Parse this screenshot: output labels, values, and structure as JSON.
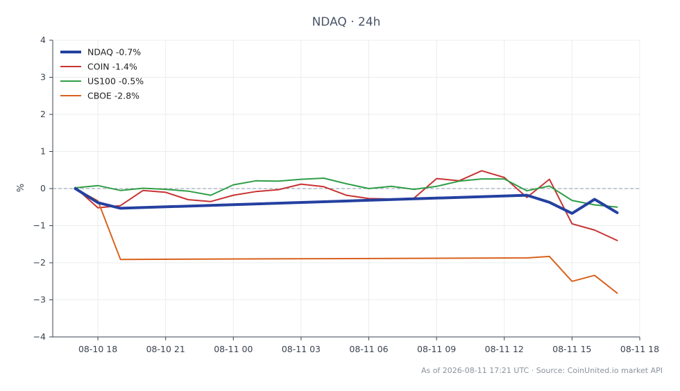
{
  "chart_data": {
    "type": "line",
    "title": "NDAQ · 24h",
    "xlabel": "",
    "ylabel": "%",
    "footer": "As of 2026-08-11 17:21 UTC · Source: CoinUnited.io market API",
    "ylim": [
      -4,
      4
    ],
    "yticks": [
      -4,
      -3,
      -2,
      -1,
      0,
      1,
      2,
      3,
      4
    ],
    "ytick_labels": [
      "−4",
      "−3",
      "−2",
      "−1",
      "0",
      "1",
      "2",
      "3",
      "4"
    ],
    "xlim_hours": [
      16.0,
      42.0
    ],
    "xticks": [
      {
        "hour": 18,
        "label": "08-10 18"
      },
      {
        "hour": 21,
        "label": "08-10 21"
      },
      {
        "hour": 24,
        "label": "08-11 00"
      },
      {
        "hour": 27,
        "label": "08-11 03"
      },
      {
        "hour": 30,
        "label": "08-11 06"
      },
      {
        "hour": 33,
        "label": "08-11 09"
      },
      {
        "hour": 36,
        "label": "08-11 12"
      },
      {
        "hour": 39,
        "label": "08-11 15"
      },
      {
        "hour": 42,
        "label": "08-11 18"
      }
    ],
    "grid": true,
    "zero_line": true,
    "legend_position": "top-left",
    "series": [
      {
        "name": "NDAQ -0.7%",
        "color": "#2440a0",
        "width": 4,
        "x": [
          17,
          18,
          19,
          37,
          38,
          39,
          40,
          41
        ],
        "y": [
          0.0,
          -0.38,
          -0.53,
          -0.18,
          -0.37,
          -0.67,
          -0.29,
          -0.65
        ]
      },
      {
        "name": "COIN -1.4%",
        "color": "#c83232",
        "width": 2,
        "x": [
          17,
          18,
          19,
          20,
          21,
          22,
          23,
          24,
          25,
          26,
          27,
          28,
          29,
          30,
          31,
          32,
          33,
          34,
          35,
          36,
          37,
          38,
          39,
          40,
          41
        ],
        "y": [
          0.03,
          -0.52,
          -0.46,
          -0.05,
          -0.1,
          -0.3,
          -0.35,
          -0.18,
          -0.08,
          -0.03,
          0.12,
          0.05,
          -0.18,
          -0.27,
          -0.28,
          -0.26,
          0.27,
          0.21,
          0.48,
          0.3,
          -0.24,
          0.25,
          -0.95,
          -1.12,
          -1.4
        ]
      },
      {
        "name": "US100 -0.5%",
        "color": "#2e9d46",
        "width": 2,
        "x": [
          17,
          18,
          19,
          20,
          21,
          22,
          23,
          24,
          25,
          26,
          27,
          28,
          29,
          30,
          31,
          32,
          33,
          34,
          35,
          36,
          37,
          38,
          39,
          40,
          41
        ],
        "y": [
          0.02,
          0.08,
          -0.05,
          0.01,
          -0.02,
          -0.07,
          -0.18,
          0.1,
          0.21,
          0.2,
          0.25,
          0.28,
          0.13,
          0.0,
          0.06,
          -0.02,
          0.06,
          0.2,
          0.26,
          0.26,
          -0.06,
          0.07,
          -0.32,
          -0.44,
          -0.5
        ]
      },
      {
        "name": "CBOE -2.8%",
        "color": "#d9601c",
        "width": 2,
        "x": [
          17,
          18,
          19,
          37,
          38,
          39,
          40,
          41
        ],
        "y": [
          0.0,
          -0.33,
          -1.91,
          -1.87,
          -1.83,
          -2.5,
          -2.34,
          -2.82
        ]
      }
    ]
  }
}
